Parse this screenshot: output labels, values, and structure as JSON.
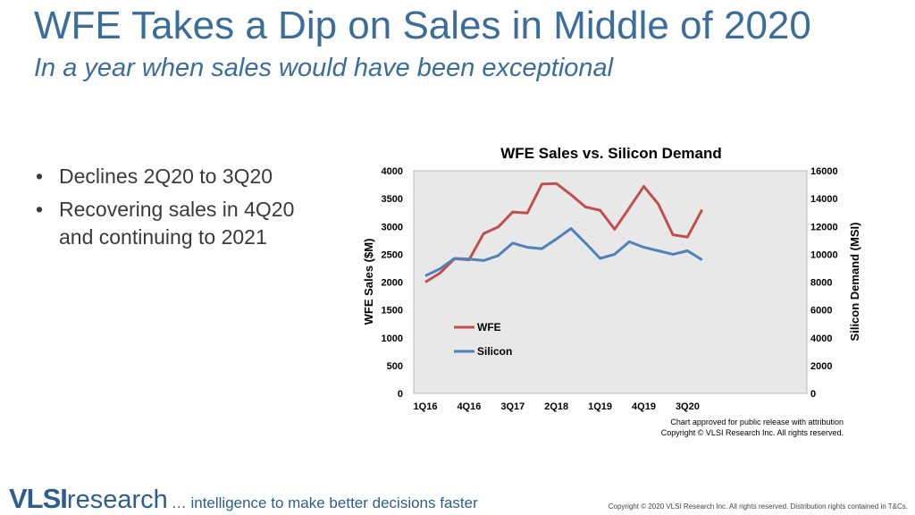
{
  "header": {
    "title": "WFE Takes a Dip on Sales in Middle of 2020",
    "subtitle": "In a year when sales would have been exceptional"
  },
  "bullets": [
    "Declines 2Q20 to 3Q20",
    "Recovering sales in 4Q20 and continuing to 2021"
  ],
  "chart_data": {
    "type": "line",
    "title": "WFE Sales vs. Silicon Demand",
    "ylabel": "WFE Sales ($M)",
    "y2label": "Silicon Demand (MSI)",
    "categories": [
      "1Q16",
      "2Q16",
      "3Q16",
      "4Q16",
      "1Q17",
      "2Q17",
      "3Q17",
      "4Q17",
      "1Q18",
      "2Q18",
      "3Q18",
      "4Q18",
      "1Q19",
      "2Q19",
      "3Q19",
      "4Q19",
      "1Q20",
      "2Q20",
      "3Q20",
      "4Q20"
    ],
    "tick_labels": [
      "1Q16",
      "4Q16",
      "3Q17",
      "2Q18",
      "1Q19",
      "4Q19",
      "3Q20"
    ],
    "ylim": [
      0,
      4000
    ],
    "y2lim": [
      0,
      16000
    ],
    "yticks": [
      0,
      500,
      1000,
      1500,
      2000,
      2500,
      3000,
      3500,
      4000
    ],
    "y2ticks": [
      0,
      2000,
      4000,
      6000,
      8000,
      10000,
      12000,
      14000,
      16000
    ],
    "series": [
      {
        "name": "WFE",
        "axis": "left",
        "color": "#c0504d",
        "values": [
          2000,
          2160,
          2420,
          2400,
          2870,
          2990,
          3260,
          3240,
          3760,
          3770,
          3570,
          3350,
          3290,
          2950,
          3330,
          3720,
          3400,
          2850,
          2810,
          3300
        ]
      },
      {
        "name": "Silicon",
        "axis": "right",
        "color": "#4f81bd",
        "values": [
          8450,
          8950,
          9700,
          9650,
          9550,
          9900,
          10800,
          10500,
          10400,
          11100,
          11850,
          10800,
          9700,
          10000,
          10900,
          10500,
          10250,
          10000,
          10250,
          9600
        ]
      }
    ],
    "grid": false,
    "legend": "inside-lower-left",
    "notes": [
      "Chart approved for public release with attribution",
      "Copyright © VLSI Research Inc. All rights reserved."
    ]
  },
  "footer": {
    "logo_bold": "VLSI",
    "logo_light": "research",
    "tagline": "… intelligence to make better decisions faster",
    "copyright": "Copyright © 2020 VLSI Research Inc. All rights reserved. Distribution rights contained in T&Cs."
  }
}
